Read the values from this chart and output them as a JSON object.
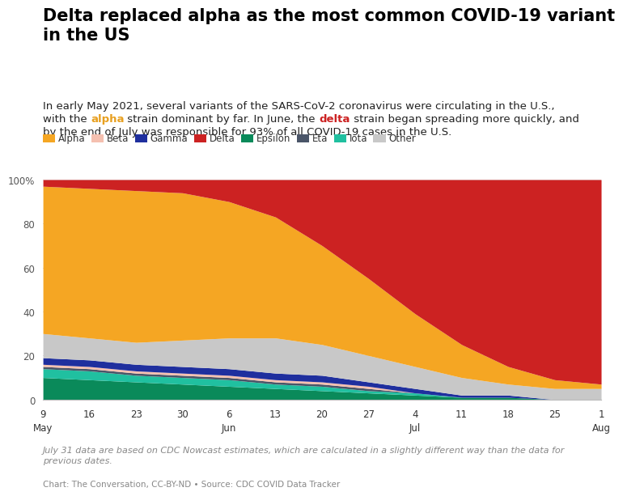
{
  "title": "Delta replaced alpha as the most common COVID-19 variant\nin the US",
  "footnote1": "July 31 data are based on CDC Nowcast estimates, which are calculated in a slightly different way than the data for\nprevious dates.",
  "footnote2": "Chart: The Conversation, CC-BY-ND • Source: CDC COVID Data Tracker",
  "legend_labels": [
    "Alpha",
    "Beta",
    "Gamma",
    "Delta",
    "Epsilon",
    "Eta",
    "Iota",
    "Other"
  ],
  "legend_colors": [
    "#f5a623",
    "#f5c0b0",
    "#1f2f9e",
    "#cc2222",
    "#0a8a5a",
    "#4a5568",
    "#20c0a0",
    "#c8c8c8"
  ],
  "x_tick_labels": [
    "9",
    "16",
    "23",
    "30",
    "6",
    "13",
    "20",
    "27",
    "4",
    "11",
    "18",
    "25",
    "1"
  ],
  "month_label_map": {
    "0": "May",
    "4": "Jun",
    "8": "Jul",
    "12": "Aug"
  },
  "variants": {
    "Alpha": [
      67,
      68,
      69,
      67,
      62,
      55,
      45,
      35,
      24,
      15,
      8,
      4,
      2
    ],
    "Beta": [
      1,
      1,
      1,
      1,
      1,
      1,
      1,
      1,
      0,
      0,
      0,
      0,
      0
    ],
    "Gamma": [
      3,
      3,
      3,
      3,
      3,
      3,
      3,
      2,
      2,
      1,
      1,
      0,
      0
    ],
    "Delta": [
      3,
      4,
      5,
      6,
      10,
      17,
      30,
      45,
      61,
      75,
      85,
      91,
      93
    ],
    "Epsilon": [
      10,
      9,
      8,
      7,
      6,
      5,
      4,
      3,
      2,
      1,
      1,
      0,
      0
    ],
    "Eta": [
      1,
      1,
      1,
      1,
      1,
      1,
      1,
      1,
      0,
      0,
      0,
      0,
      0
    ],
    "Iota": [
      4,
      4,
      3,
      3,
      3,
      2,
      2,
      1,
      1,
      0,
      0,
      0,
      0
    ],
    "Other": [
      11,
      10,
      10,
      12,
      14,
      16,
      14,
      12,
      10,
      8,
      5,
      5,
      5
    ]
  },
  "stack_order": [
    "Epsilon",
    "Iota",
    "Eta",
    "Beta",
    "Gamma",
    "Other",
    "Alpha",
    "Delta"
  ],
  "colors": {
    "Alpha": "#f5a623",
    "Beta": "#f5c0b0",
    "Gamma": "#1f2f9e",
    "Delta": "#cc2222",
    "Epsilon": "#0a8a5a",
    "Eta": "#4a5568",
    "Iota": "#20c0a0",
    "Other": "#c8c8c8"
  },
  "alpha_color": "#e8a020",
  "delta_color": "#cc2222",
  "background_color": "#ffffff",
  "title_fontsize": 15,
  "subtitle_fontsize": 9.5,
  "legend_fontsize": 8.5,
  "tick_fontsize": 8.5,
  "footnote_fontsize": 8.0,
  "footnote2_fontsize": 7.5
}
